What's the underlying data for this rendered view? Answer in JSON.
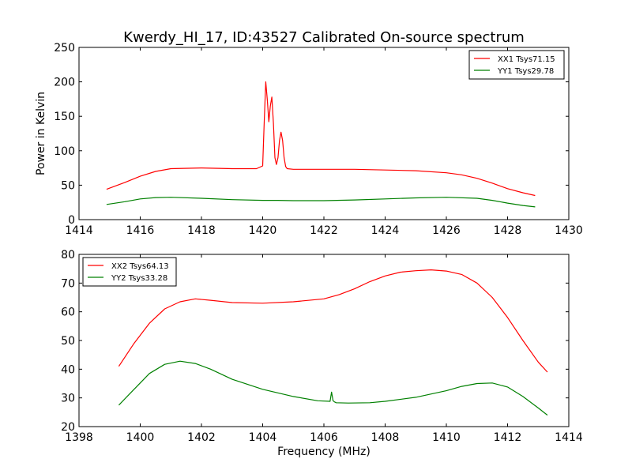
{
  "chart_data": {
    "title": "Kwerdy_HI_17, ID:43527 Calibrated On-source spectrum",
    "panels": [
      {
        "type": "line",
        "xlabel": "",
        "ylabel": "Power in Kelvin",
        "xlim": [
          1414,
          1430
        ],
        "ylim": [
          0,
          250
        ],
        "xticks": [
          1414,
          1416,
          1418,
          1420,
          1422,
          1424,
          1426,
          1428,
          1430
        ],
        "yticks": [
          0,
          50,
          100,
          150,
          200,
          250
        ],
        "grid": false,
        "legend_position": "top-right",
        "series": [
          {
            "name": "XX1 Tsys71.15",
            "color": "#ff0000",
            "x": [
              1414.9,
              1415.5,
              1416.0,
              1416.5,
              1417.0,
              1418.0,
              1419.0,
              1419.8,
              1420.0,
              1420.05,
              1420.1,
              1420.15,
              1420.2,
              1420.25,
              1420.3,
              1420.35,
              1420.4,
              1420.45,
              1420.5,
              1420.55,
              1420.6,
              1420.65,
              1420.7,
              1420.75,
              1420.8,
              1421.0,
              1422.0,
              1423.0,
              1424.0,
              1425.0,
              1426.0,
              1426.5,
              1427.0,
              1427.5,
              1428.0,
              1428.5,
              1428.9
            ],
            "y": [
              44,
              54,
              63,
              70,
              74,
              75,
              74,
              74,
              78,
              140,
              200,
              175,
              142,
              165,
              178,
              140,
              90,
              80,
              90,
              115,
              127,
              115,
              90,
              77,
              74,
              73,
              73,
              73,
              72,
              71,
              68,
              65,
              60,
              53,
              45,
              39,
              35
            ]
          },
          {
            "name": "YY1 Tsys29.78",
            "color": "#008000",
            "x": [
              1414.9,
              1415.5,
              1416.0,
              1416.5,
              1417.0,
              1418.0,
              1419.0,
              1420.0,
              1420.5,
              1421.0,
              1422.0,
              1423.0,
              1424.0,
              1425.0,
              1426.0,
              1427.0,
              1427.5,
              1428.0,
              1428.5,
              1428.9
            ],
            "y": [
              22,
              26,
              30,
              32,
              32.5,
              31,
              29,
              28,
              28,
              27.5,
              27.5,
              28.5,
              30,
              31.5,
              32.5,
              31,
              28,
              24,
              20.5,
              18.5
            ]
          }
        ]
      },
      {
        "type": "line",
        "xlabel": "Frequency (MHz)",
        "ylabel": "",
        "xlim": [
          1398,
          1414
        ],
        "ylim": [
          20,
          80
        ],
        "xticks": [
          1398,
          1400,
          1402,
          1404,
          1406,
          1408,
          1410,
          1412,
          1414
        ],
        "yticks": [
          20,
          30,
          40,
          50,
          60,
          70,
          80
        ],
        "grid": false,
        "legend_position": "top-left",
        "series": [
          {
            "name": "XX2 Tsys64.13",
            "color": "#ff0000",
            "x": [
              1399.3,
              1399.8,
              1400.3,
              1400.8,
              1401.3,
              1401.8,
              1402.3,
              1403.0,
              1404.0,
              1405.0,
              1406.0,
              1406.5,
              1407.0,
              1407.5,
              1408.0,
              1408.5,
              1409.0,
              1409.5,
              1410.0,
              1410.5,
              1411.0,
              1411.5,
              1412.0,
              1412.5,
              1413.0,
              1413.3
            ],
            "y": [
              41,
              49,
              56,
              61,
              63.5,
              64.5,
              64,
              63.2,
              63,
              63.5,
              64.5,
              66,
              68,
              70.5,
              72.5,
              73.8,
              74.3,
              74.6,
              74.2,
              73,
              70,
              65,
              58,
              50,
              42.5,
              39
            ]
          },
          {
            "name": "YY2 Tsys33.28",
            "color": "#008000",
            "x": [
              1399.3,
              1399.8,
              1400.3,
              1400.8,
              1401.3,
              1401.8,
              1402.3,
              1403.0,
              1404.0,
              1405.0,
              1405.8,
              1406.2,
              1406.25,
              1406.3,
              1406.35,
              1406.4,
              1406.8,
              1407.5,
              1408.0,
              1409.0,
              1410.0,
              1410.5,
              1411.0,
              1411.5,
              1412.0,
              1412.5,
              1413.0,
              1413.3
            ],
            "y": [
              27.5,
              33,
              38.5,
              41.7,
              42.8,
              42,
              40,
              36.5,
              33,
              30.5,
              29,
              28.8,
              32,
              29,
              28.6,
              28.3,
              28.2,
              28.3,
              28.8,
              30.2,
              32.5,
              34,
              35,
              35.2,
              33.8,
              30.5,
              26.5,
              24
            ]
          }
        ]
      }
    ]
  }
}
